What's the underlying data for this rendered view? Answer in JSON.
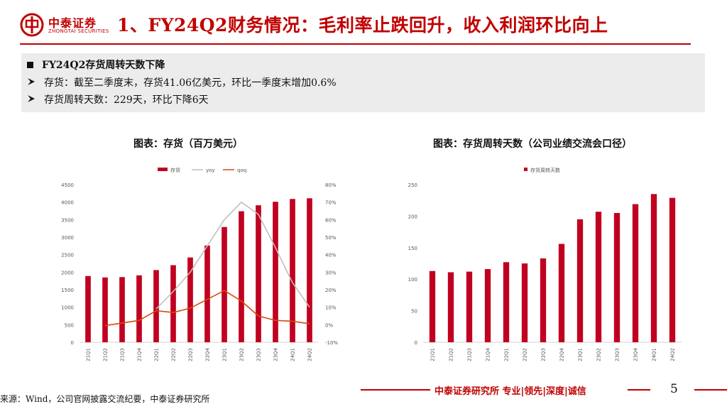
{
  "header": {
    "logo_cn": "中泰证券",
    "logo_en": "ZHONGTAI SECURITIES",
    "title": "1、FY24Q2财务情况：毛利率止跌回升，收入利润环比向上"
  },
  "summary": {
    "heading": "FY24Q2存货周转天数下降",
    "points": [
      "存货：截至二季度末，存货41.06亿美元，环比一季度末增加0.6%",
      "存货周转天数：229天，环比下降6天"
    ]
  },
  "footer": {
    "slogan": "中泰证券研究所 专业|领先|深度|诚信",
    "page": "5",
    "source": "来源：Wind，公司官网披露交流纪要，中泰证券研究所"
  },
  "colors": {
    "brand": "#c00000",
    "bar": "#c00020",
    "yoy": "#bfbfbf",
    "qoq": "#d9480f"
  },
  "chart_data": [
    {
      "type": "bar",
      "title": "图表：存货（百万美元）",
      "categories": [
        "21Q1",
        "21Q2",
        "21Q3",
        "21Q4",
        "22Q1",
        "22Q2",
        "22Q3",
        "22Q4",
        "23Q1",
        "23Q2",
        "23Q3",
        "23Q4",
        "24Q1",
        "24Q2"
      ],
      "series": [
        {
          "name": "存货",
          "kind": "bar",
          "axis": "left",
          "values": [
            1890,
            1850,
            1860,
            1910,
            2060,
            2200,
            2420,
            2760,
            3290,
            3740,
            3910,
            4010,
            4090,
            4110
          ]
        },
        {
          "name": "yoy",
          "kind": "line",
          "axis": "right",
          "values": [
            null,
            null,
            null,
            null,
            9,
            19,
            30,
            45,
            60,
            70,
            63,
            44,
            24,
            10
          ]
        },
        {
          "name": "qoq",
          "kind": "line",
          "axis": "right",
          "values": [
            null,
            -0.5,
            1,
            2.5,
            8,
            7,
            9.5,
            14.5,
            19.5,
            13.5,
            5,
            2.5,
            2,
            0.6
          ]
        }
      ],
      "y_left": {
        "ticks": [
          "0",
          "500",
          "1000",
          "1500",
          "2000",
          "2500",
          "3000",
          "3500",
          "4000",
          "4500"
        ],
        "lim": [
          0,
          4500
        ]
      },
      "y_right": {
        "ticks": [
          "-10%",
          "0%",
          "10%",
          "20%",
          "30%",
          "40%",
          "50%",
          "60%",
          "70%",
          "80%"
        ],
        "lim": [
          -10,
          80
        ]
      },
      "legend": [
        "存货",
        "yoy",
        "qoq"
      ],
      "grid": false
    },
    {
      "type": "bar",
      "title": "图表：存货周转天数（公司业绩交流会口径）",
      "categories": [
        "21Q1",
        "21Q2",
        "21Q3",
        "21Q4",
        "22Q1",
        "22Q2",
        "22Q3",
        "22Q4",
        "23Q1",
        "23Q2",
        "23Q3",
        "23Q4",
        "24Q1",
        "24Q2"
      ],
      "series": [
        {
          "name": "存货周转天数",
          "kind": "bar",
          "values": [
            113,
            111,
            112,
            116,
            127,
            125,
            133,
            156,
            195,
            207,
            205,
            219,
            235,
            229
          ]
        }
      ],
      "y_left": {
        "ticks": [
          "0",
          "50",
          "100",
          "150",
          "200",
          "250"
        ],
        "lim": [
          0,
          250
        ]
      },
      "legend": [
        "存货周转天数"
      ],
      "grid": false
    }
  ]
}
